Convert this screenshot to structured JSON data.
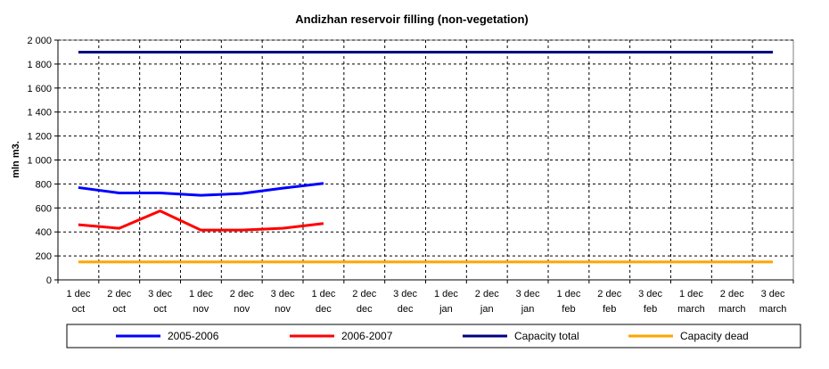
{
  "chart_data": {
    "type": "line",
    "title": "Andizhan reservoir filling  (non-vegetation)",
    "xlabel": "",
    "ylabel": "mln m3.",
    "ylim": [
      0,
      2000
    ],
    "y_ticks": [
      0,
      200,
      400,
      600,
      800,
      1000,
      1200,
      1400,
      1600,
      1800,
      2000
    ],
    "y_tick_labels": [
      "0",
      "200",
      "400",
      "600",
      "800",
      "1 000",
      "1 200",
      "1 400",
      "1 600",
      "1 800",
      "2 000"
    ],
    "grid": true,
    "legend_position": "bottom",
    "categories": [
      [
        "1 dec",
        "oct"
      ],
      [
        "2 dec",
        "oct"
      ],
      [
        "3 dec",
        "oct"
      ],
      [
        "1 dec",
        "nov"
      ],
      [
        "2 dec",
        "nov"
      ],
      [
        "3 dec",
        "nov"
      ],
      [
        "1 dec",
        "dec"
      ],
      [
        "2 dec",
        "dec"
      ],
      [
        "3 dec",
        "dec"
      ],
      [
        "1 dec",
        "jan"
      ],
      [
        "2 dec",
        "jan"
      ],
      [
        "3 dec",
        "jan"
      ],
      [
        "1 dec",
        "feb"
      ],
      [
        "2 dec",
        "feb"
      ],
      [
        "3 dec",
        "feb"
      ],
      [
        "1 dec",
        "march"
      ],
      [
        "2 dec",
        "march"
      ],
      [
        "3 dec",
        "march"
      ]
    ],
    "series": [
      {
        "name": "2005-2006",
        "color": "#0000ff",
        "values": [
          770,
          725,
          725,
          705,
          720,
          765,
          805,
          null,
          null,
          null,
          null,
          null,
          null,
          null,
          null,
          null,
          null,
          null
        ]
      },
      {
        "name": "2006-2007",
        "color": "#ff0000",
        "values": [
          460,
          430,
          575,
          415,
          415,
          430,
          470,
          null,
          null,
          null,
          null,
          null,
          null,
          null,
          null,
          null,
          null,
          null
        ]
      },
      {
        "name": "Capacity total",
        "color": "#000080",
        "values": [
          1900,
          1900,
          1900,
          1900,
          1900,
          1900,
          1900,
          1900,
          1900,
          1900,
          1900,
          1900,
          1900,
          1900,
          1900,
          1900,
          1900,
          1900
        ]
      },
      {
        "name": "Capacity dead",
        "color": "#ffa500",
        "values": [
          150,
          150,
          150,
          150,
          150,
          150,
          150,
          150,
          150,
          150,
          150,
          150,
          150,
          150,
          150,
          150,
          150,
          150
        ]
      }
    ]
  }
}
